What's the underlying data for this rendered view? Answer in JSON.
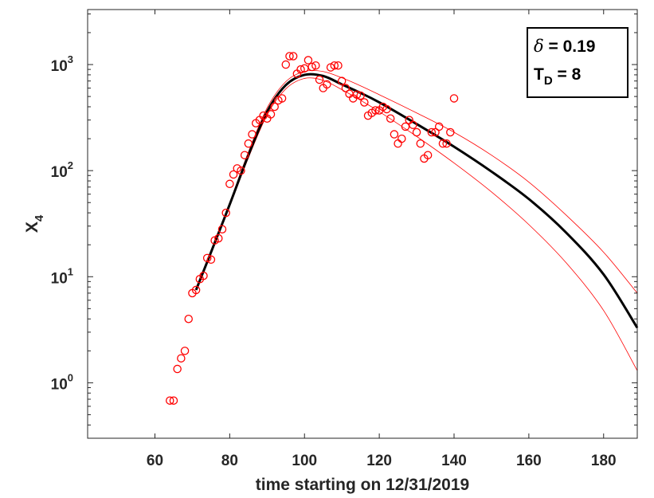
{
  "chart_data": {
    "type": "scatter",
    "xlabel": "time starting on 12/31/2019",
    "ylabel": "X",
    "ylabel_sub": "4",
    "y_scale": "log",
    "xlim": [
      42,
      189
    ],
    "ylim": [
      0.3,
      3300
    ],
    "x_ticks": [
      60,
      80,
      100,
      120,
      140,
      160,
      180
    ],
    "y_ticks": [
      {
        "value": 1,
        "base": "10",
        "exp": "0"
      },
      {
        "value": 10,
        "base": "10",
        "exp": "1"
      },
      {
        "value": 100,
        "base": "10",
        "exp": "2"
      },
      {
        "value": 1000,
        "base": "10",
        "exp": "3"
      }
    ],
    "grid": false,
    "legend": {
      "placement": "top-right",
      "line1_symbol": "δ",
      "line1_value": " = 0.19",
      "line2_symbol": "T",
      "line2_sub": "D",
      "line2_value": " = 8"
    },
    "colors": {
      "data": "#ff0000",
      "fit": "#000000",
      "band": "#ff0000",
      "axis": "#262626"
    },
    "series": [
      {
        "kind": "markers",
        "marker": "circle",
        "points": [
          [
            64,
            0.68
          ],
          [
            65,
            0.68
          ],
          [
            66,
            1.35
          ],
          [
            67,
            1.7
          ],
          [
            68,
            2.0
          ],
          [
            69,
            4.0
          ],
          [
            70,
            7.0
          ],
          [
            71,
            7.5
          ],
          [
            72,
            9.5
          ],
          [
            73,
            10.2
          ],
          [
            74,
            15
          ],
          [
            75,
            14.5
          ],
          [
            76,
            22
          ],
          [
            77,
            23
          ],
          [
            78,
            28
          ],
          [
            79,
            40
          ],
          [
            80,
            75
          ],
          [
            81,
            92
          ],
          [
            82,
            105
          ],
          [
            83,
            100
          ],
          [
            84,
            140
          ],
          [
            85,
            180
          ],
          [
            86,
            220
          ],
          [
            87,
            280
          ],
          [
            88,
            300
          ],
          [
            89,
            330
          ],
          [
            90,
            310
          ],
          [
            91,
            340
          ],
          [
            92,
            400
          ],
          [
            93,
            460
          ],
          [
            94,
            480
          ],
          [
            95,
            1000
          ],
          [
            96,
            1200
          ],
          [
            97,
            1200
          ],
          [
            98,
            820
          ],
          [
            99,
            900
          ],
          [
            100,
            920
          ],
          [
            101,
            1100
          ],
          [
            102,
            950
          ],
          [
            103,
            980
          ],
          [
            104,
            720
          ],
          [
            105,
            600
          ],
          [
            106,
            650
          ],
          [
            107,
            940
          ],
          [
            108,
            980
          ],
          [
            109,
            980
          ],
          [
            110,
            700
          ],
          [
            111,
            600
          ],
          [
            112,
            530
          ],
          [
            113,
            480
          ],
          [
            114,
            520
          ],
          [
            115,
            510
          ],
          [
            116,
            440
          ],
          [
            117,
            330
          ],
          [
            118,
            350
          ],
          [
            119,
            370
          ],
          [
            120,
            370
          ],
          [
            121,
            400
          ],
          [
            122,
            380
          ],
          [
            123,
            310
          ],
          [
            124,
            220
          ],
          [
            125,
            180
          ],
          [
            126,
            200
          ],
          [
            127,
            260
          ],
          [
            128,
            300
          ],
          [
            129,
            270
          ],
          [
            130,
            230
          ],
          [
            131,
            180
          ],
          [
            132,
            130
          ],
          [
            133,
            140
          ],
          [
            134,
            230
          ],
          [
            135,
            230
          ],
          [
            136,
            260
          ],
          [
            137,
            180
          ],
          [
            138,
            180
          ],
          [
            139,
            230
          ],
          [
            140,
            480
          ]
        ]
      },
      {
        "kind": "line",
        "role": "fit",
        "points": [
          [
            71,
            7.5
          ],
          [
            75,
            17
          ],
          [
            80,
            48
          ],
          [
            85,
            140
          ],
          [
            90,
            360
          ],
          [
            95,
            640
          ],
          [
            100,
            800
          ],
          [
            105,
            780
          ],
          [
            110,
            650
          ],
          [
            115,
            540
          ],
          [
            120,
            440
          ],
          [
            130,
            275
          ],
          [
            140,
            168
          ],
          [
            150,
            98
          ],
          [
            160,
            54
          ],
          [
            170,
            26
          ],
          [
            180,
            10.5
          ],
          [
            189,
            3.3
          ]
        ]
      },
      {
        "kind": "line",
        "role": "upper-bound",
        "points": [
          [
            71,
            7.5
          ],
          [
            75,
            17.5
          ],
          [
            80,
            50
          ],
          [
            85,
            150
          ],
          [
            90,
            390
          ],
          [
            95,
            690
          ],
          [
            100,
            860
          ],
          [
            105,
            860
          ],
          [
            110,
            750
          ],
          [
            115,
            630
          ],
          [
            120,
            520
          ],
          [
            130,
            350
          ],
          [
            140,
            230
          ],
          [
            150,
            140
          ],
          [
            160,
            78
          ],
          [
            170,
            38
          ],
          [
            180,
            17
          ],
          [
            189,
            7
          ]
        ]
      },
      {
        "kind": "line",
        "role": "lower-bound",
        "points": [
          [
            71,
            7.5
          ],
          [
            75,
            16.5
          ],
          [
            80,
            46
          ],
          [
            85,
            132
          ],
          [
            90,
            335
          ],
          [
            95,
            590
          ],
          [
            100,
            740
          ],
          [
            105,
            710
          ],
          [
            110,
            580
          ],
          [
            115,
            460
          ],
          [
            120,
            360
          ],
          [
            130,
            210
          ],
          [
            140,
            118
          ],
          [
            150,
            63
          ],
          [
            160,
            31
          ],
          [
            170,
            13.5
          ],
          [
            180,
            4.8
          ],
          [
            189,
            1.3
          ]
        ]
      }
    ]
  }
}
